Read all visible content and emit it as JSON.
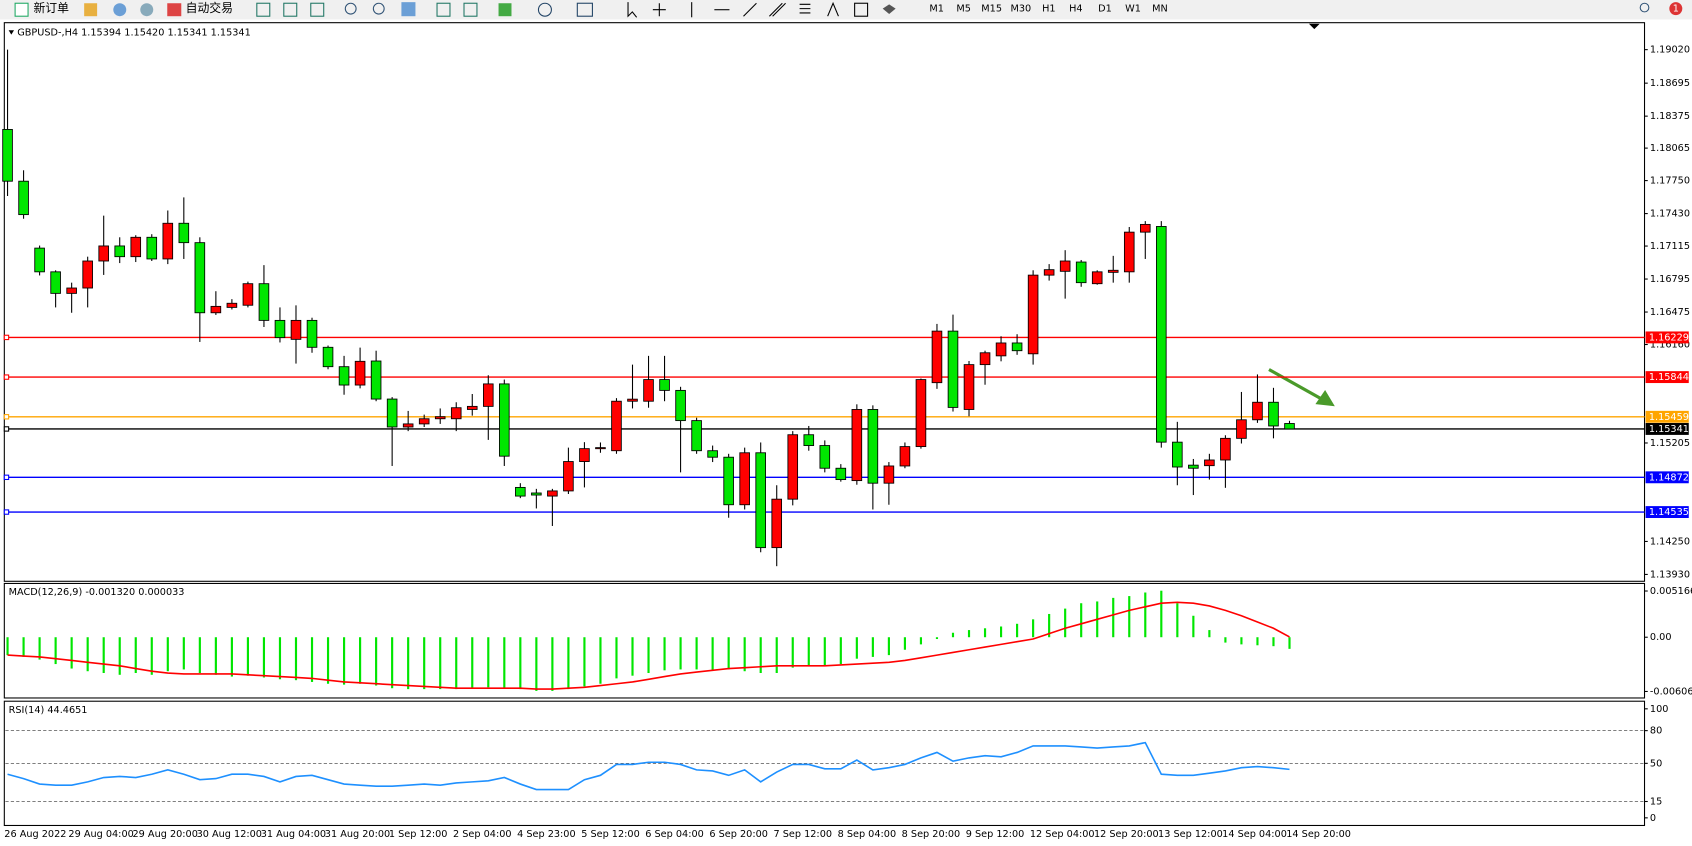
{
  "toolbar": {
    "new_order": "新订单",
    "auto_trading": "自动交易",
    "timeframes": [
      "M1",
      "M5",
      "M15",
      "M30",
      "H1",
      "H4",
      "D1",
      "W1",
      "MN"
    ],
    "notifications": "1"
  },
  "chart_data": [
    {
      "type": "candlestick",
      "title": "GBPUSD-,H4  1.15394 1.15420 1.15341 1.15341",
      "categories": [
        "26 Aug 2022",
        null,
        null,
        null,
        "29 Aug 04:00",
        null,
        null,
        null,
        "29 Aug 20:00",
        null,
        null,
        null,
        "30 Aug 12:00",
        null,
        null,
        null,
        "31 Aug 04:00",
        null,
        null,
        null,
        "31 Aug 20:00",
        null,
        null,
        null,
        "1 Sep 12:00",
        null,
        null,
        null,
        "2 Sep 04:00",
        null,
        null,
        null,
        "4 Sep 23:00",
        null,
        null,
        null,
        "5 Sep 12:00",
        null,
        null,
        null,
        "6 Sep 04:00",
        null,
        null,
        null,
        "6 Sep 20:00",
        null,
        null,
        null,
        "7 Sep 12:00",
        null,
        null,
        null,
        "8 Sep 04:00",
        null,
        null,
        null,
        "8 Sep 20:00",
        null,
        null,
        null,
        "9 Sep 12:00",
        null,
        null,
        null,
        "12 Sep 04:00",
        null,
        null,
        null,
        "12 Sep 20:00",
        null,
        null,
        null,
        "13 Sep 12:00",
        null,
        null,
        null,
        "14 Sep 04:00",
        null,
        null,
        null,
        "14 Sep 20:00"
      ],
      "open": [
        1.18246,
        1.17744,
        1.17095,
        1.16865,
        1.16656,
        1.16708,
        1.1697,
        1.17116,
        1.17012,
        1.172,
        1.1699,
        1.17336,
        1.17148,
        1.16468,
        1.1652,
        1.16541,
        1.1675,
        1.16394,
        1.1621,
        1.16394,
        1.16133,
        1.15945,
        1.15767,
        1.16,
        1.15631,
        1.1536,
        1.1539,
        1.1544,
        1.1544,
        1.1553,
        1.1556,
        1.15778,
        1.14774,
        1.1472,
        1.1469,
        1.1474,
        1.15025,
        1.1515,
        1.1513,
        1.1561,
        1.1561,
        1.1582,
        1.15715,
        1.15422,
        1.1513,
        1.15067,
        1.14606,
        1.1511,
        1.1419,
        1.1466,
        1.15285,
        1.1518,
        1.1496,
        1.1484,
        1.1553,
        1.14815,
        1.14982,
        1.1517,
        1.1579,
        1.1629,
        1.1553,
        1.15965,
        1.1605,
        1.16175,
        1.1607,
        1.16833,
        1.1687,
        1.1696,
        1.1675,
        1.1686,
        1.16865,
        1.1725,
        1.17305,
        1.15213,
        1.1499,
        1.14985,
        1.1504,
        1.1525,
        1.1543,
        1.156,
        1.15394
      ],
      "high": [
        1.1902,
        1.1785,
        1.1712,
        1.1688,
        1.1676,
        1.17012,
        1.1741,
        1.172,
        1.1722,
        1.1723,
        1.1746,
        1.17587,
        1.172,
        1.16677,
        1.166,
        1.1677,
        1.1693,
        1.1652,
        1.1654,
        1.1642,
        1.1615,
        1.1605,
        1.1613,
        1.161,
        1.1565,
        1.15516,
        1.1548,
        1.1554,
        1.156,
        1.1568,
        1.15862,
        1.1582,
        1.14815,
        1.1476,
        1.1476,
        1.1516,
        1.15213,
        1.1521,
        1.1564,
        1.15965,
        1.1605,
        1.1605,
        1.1575,
        1.1545,
        1.1518,
        1.151,
        1.1516,
        1.1521,
        1.14795,
        1.1532,
        1.1537,
        1.1523,
        1.15,
        1.1558,
        1.1557,
        1.1502,
        1.1521,
        1.1583,
        1.1636,
        1.1645,
        1.16,
        1.161,
        1.1624,
        1.1626,
        1.1688,
        1.1694,
        1.17075,
        1.1698,
        1.1688,
        1.1702,
        1.173,
        1.17357,
        1.17357,
        1.1541,
        1.1505,
        1.151,
        1.1528,
        1.157,
        1.1587,
        1.1574,
        1.1542
      ],
      "low": [
        1.176,
        1.1738,
        1.1683,
        1.1652,
        1.16468,
        1.1652,
        1.16835,
        1.1695,
        1.1696,
        1.1697,
        1.1694,
        1.1699,
        1.16185,
        1.16447,
        1.165,
        1.1652,
        1.1633,
        1.1618,
        1.15975,
        1.1608,
        1.1592,
        1.15673,
        1.15735,
        1.1561,
        1.14982,
        1.1532,
        1.1536,
        1.1539,
        1.1532,
        1.1547,
        1.15235,
        1.14982,
        1.1467,
        1.1457,
        1.144,
        1.1471,
        1.14774,
        1.1511,
        1.151,
        1.1554,
        1.15547,
        1.1561,
        1.1492,
        1.151,
        1.1502,
        1.1448,
        1.1456,
        1.14145,
        1.1401,
        1.146,
        1.1513,
        1.1492,
        1.1483,
        1.148,
        1.1456,
        1.14606,
        1.1496,
        1.1515,
        1.1573,
        1.1551,
        1.15464,
        1.1577,
        1.15997,
        1.1606,
        1.15965,
        1.1678,
        1.16605,
        1.1672,
        1.1674,
        1.1676,
        1.1676,
        1.1699,
        1.1516,
        1.14795,
        1.147,
        1.1485,
        1.1477,
        1.152,
        1.154,
        1.1525,
        1.15341
      ],
      "close": [
        1.17744,
        1.1742,
        1.16865,
        1.16656,
        1.16708,
        1.1697,
        1.17116,
        1.17012,
        1.172,
        1.1699,
        1.17336,
        1.17148,
        1.16468,
        1.1653,
        1.1656,
        1.1675,
        1.16394,
        1.16227,
        1.16394,
        1.16133,
        1.15945,
        1.15767,
        1.15997,
        1.15631,
        1.1536,
        1.1539,
        1.1544,
        1.1546,
        1.15547,
        1.1556,
        1.15778,
        1.15077,
        1.1469,
        1.147,
        1.1474,
        1.15025,
        1.1515,
        1.1516,
        1.1561,
        1.1563,
        1.1582,
        1.15715,
        1.15422,
        1.1513,
        1.15067,
        1.14606,
        1.1511,
        1.1419,
        1.1466,
        1.15285,
        1.1518,
        1.1496,
        1.1485,
        1.1553,
        1.14815,
        1.14982,
        1.1517,
        1.1582,
        1.1629,
        1.1555,
        1.15965,
        1.1608,
        1.16175,
        1.161,
        1.16833,
        1.16886,
        1.1697,
        1.1676,
        1.16865,
        1.1688,
        1.1725,
        1.17325,
        1.15213,
        1.14972,
        1.1496,
        1.1504,
        1.1525,
        1.1543,
        1.156,
        1.1537,
        1.15341
      ],
      "up_color": "#ff0000",
      "down_color": "#00e600",
      "ylim": [
        1.13874,
        1.19271
      ],
      "yticks": [
        {
          "value": 1.1902,
          "label": "1.19020"
        },
        1.18695,
        1.18375,
        1.18065,
        {
          "value": 1.1775,
          "label": "1.17750"
        },
        {
          "value": 1.1743,
          "label": "1.17430"
        },
        1.17115,
        1.16795,
        1.16475,
        {
          "value": 1.1616,
          "label": "1.16160"
        },
        1.15205,
        {
          "value": 1.1425,
          "label": "1.14250"
        },
        {
          "value": 1.1393,
          "label": "1.13930"
        }
      ],
      "levels": [
        {
          "value": 1.16229,
          "color": "#ff0000"
        },
        {
          "value": 1.15844,
          "color": "#ff0000"
        },
        {
          "value": 1.15459,
          "color": "#ffa500"
        },
        {
          "value": 1.15341,
          "color": "#000000"
        },
        {
          "value": 1.14872,
          "color": "#0000ff"
        },
        {
          "value": 1.14535,
          "color": "#0000ff"
        }
      ]
    },
    {
      "type": "macd",
      "title": "MACD(12,26,9) -0.001320 0.000033",
      "histogram": [
        -0.002,
        -0.0022,
        -0.0025,
        -0.003,
        -0.0035,
        -0.0038,
        -0.004,
        -0.0042,
        -0.004,
        -0.0042,
        -0.0038,
        -0.0036,
        -0.004,
        -0.0042,
        -0.0044,
        -0.0043,
        -0.0045,
        -0.0047,
        -0.0048,
        -0.005,
        -0.0052,
        -0.0053,
        -0.0052,
        -0.0054,
        -0.0057,
        -0.0058,
        -0.0058,
        -0.0058,
        -0.0058,
        -0.0057,
        -0.0056,
        -0.0057,
        -0.0058,
        -0.006,
        -0.006,
        -0.0058,
        -0.0055,
        -0.0052,
        -0.0046,
        -0.0043,
        -0.004,
        -0.0037,
        -0.0036,
        -0.0036,
        -0.0037,
        -0.0036,
        -0.0038,
        -0.004,
        -0.004,
        -0.0034,
        -0.0032,
        -0.0032,
        -0.003,
        -0.0024,
        -0.0022,
        -0.002,
        -0.0014,
        -0.0008,
        -0.0002,
        0.0005,
        0.0008,
        0.001,
        0.0012,
        0.0015,
        0.002,
        0.0026,
        0.0032,
        0.0038,
        0.004,
        0.0044,
        0.0046,
        0.005,
        0.0052,
        0.0038,
        0.0024,
        0.0008,
        -0.0006,
        -0.0008,
        -0.0009,
        -0.001,
        -0.0013
      ],
      "signal": [
        -0.002,
        -0.0021,
        -0.0022,
        -0.0024,
        -0.0026,
        -0.0028,
        -0.003,
        -0.0032,
        -0.0035,
        -0.0038,
        -0.004,
        -0.0041,
        -0.0041,
        -0.0041,
        -0.0041,
        -0.0042,
        -0.0043,
        -0.0044,
        -0.0045,
        -0.0046,
        -0.0048,
        -0.005,
        -0.0051,
        -0.0052,
        -0.0053,
        -0.0054,
        -0.0055,
        -0.0056,
        -0.0057,
        -0.0057,
        -0.0057,
        -0.0057,
        -0.0057,
        -0.0058,
        -0.0058,
        -0.0057,
        -0.0056,
        -0.0054,
        -0.0052,
        -0.005,
        -0.0047,
        -0.0044,
        -0.0041,
        -0.0039,
        -0.0037,
        -0.0035,
        -0.0034,
        -0.0033,
        -0.0032,
        -0.0032,
        -0.0032,
        -0.0032,
        -0.0031,
        -0.003,
        -0.0029,
        -0.0028,
        -0.0026,
        -0.0023,
        -0.002,
        -0.0017,
        -0.0014,
        -0.0011,
        -0.0008,
        -0.0005,
        -0.0002,
        0.0004,
        0.001,
        0.0015,
        0.002,
        0.0025,
        0.003,
        0.0034,
        0.0038,
        0.0039,
        0.0038,
        0.0035,
        0.003,
        0.0024,
        0.0017,
        0.001,
        3.3e-05
      ],
      "histogram_color": "#00e600",
      "signal_color": "#ff0000",
      "ylim": [
        -0.00667,
        0.00577
      ],
      "yticks": [
        0.005166,
        {
          "value": 0,
          "label": "0.00"
        },
        -0.006064
      ]
    },
    {
      "type": "line",
      "title": "RSI(14) 44.4651",
      "values": [
        40,
        36,
        31,
        30,
        30,
        33,
        37,
        38,
        37,
        40,
        44,
        40,
        35,
        36,
        40,
        40,
        38,
        33,
        38,
        39,
        35,
        31,
        30,
        29,
        29,
        30,
        31,
        30,
        32,
        33,
        34,
        37,
        31,
        26,
        26,
        26,
        35,
        39,
        49,
        49,
        51,
        51,
        49,
        44,
        43,
        39,
        44,
        33,
        42,
        49,
        49,
        45,
        45,
        53,
        44,
        46,
        49,
        55,
        60,
        52,
        55,
        57,
        56,
        60,
        66,
        66,
        66,
        65,
        64,
        65,
        66,
        69,
        40,
        39,
        39,
        41,
        43,
        46,
        47,
        46,
        44.4651
      ],
      "color": "#1e90ff",
      "ylim": [
        -6,
        105
      ],
      "yticks": [
        0,
        15,
        50,
        80,
        100
      ],
      "levels": [
        15,
        50,
        80
      ]
    }
  ]
}
